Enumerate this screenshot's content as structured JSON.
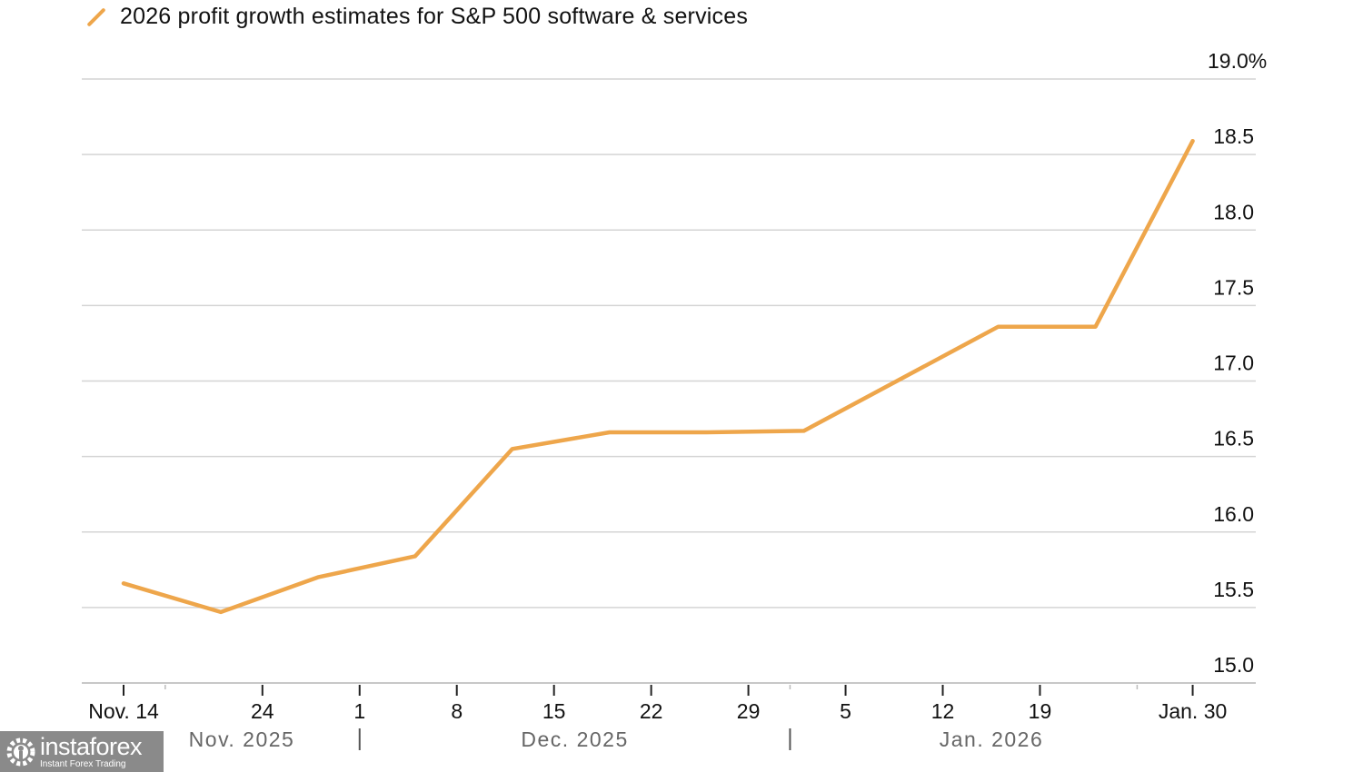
{
  "chart_data": {
    "type": "line",
    "title": "",
    "legend": [
      {
        "label": "2026 profit growth estimates for S&P 500 software & services",
        "color": "#EEA64B"
      }
    ],
    "legend_position": "top-left",
    "xlabel": "",
    "ylabel": "",
    "y_axis_side": "right",
    "ylim": [
      15.0,
      19.0
    ],
    "y_ticks": [
      {
        "value": 19.0,
        "label": "19.0%"
      },
      {
        "value": 18.5,
        "label": "18.5"
      },
      {
        "value": 18.0,
        "label": "18.0"
      },
      {
        "value": 17.5,
        "label": "17.5"
      },
      {
        "value": 17.0,
        "label": "17.0"
      },
      {
        "value": 16.5,
        "label": "16.5"
      },
      {
        "value": 16.0,
        "label": "16.0"
      },
      {
        "value": 15.5,
        "label": "15.5"
      },
      {
        "value": 15.0,
        "label": "15.0"
      }
    ],
    "grid": true,
    "x_range_days": [
      0,
      77
    ],
    "x_tick_note": "day offsets from Nov. 14, 2025",
    "x_ticks": [
      {
        "day": 0,
        "label": "Nov. 14"
      },
      {
        "day": 10,
        "label": "24"
      },
      {
        "day": 17,
        "label": "1"
      },
      {
        "day": 24,
        "label": "8"
      },
      {
        "day": 31,
        "label": "15"
      },
      {
        "day": 38,
        "label": "22"
      },
      {
        "day": 45,
        "label": "29"
      },
      {
        "day": 52,
        "label": "5"
      },
      {
        "day": 59,
        "label": "12"
      },
      {
        "day": 66,
        "label": "19"
      },
      {
        "day": 77,
        "label": "Jan. 30"
      }
    ],
    "minor_ticks_days": [
      3,
      48,
      73
    ],
    "month_labels": [
      {
        "label": "Nov. 2025",
        "start_day": 0,
        "end_day": 17
      },
      {
        "label": "Dec. 2025",
        "start_day": 17,
        "end_day": 48
      },
      {
        "label": "Jan. 2026",
        "start_day": 48,
        "end_day": 77
      }
    ],
    "month_separators_days": [
      17,
      48
    ],
    "series": [
      {
        "name": "2026 profit growth estimates for S&P 500 software & services",
        "color": "#EEA64B",
        "points": [
          {
            "date": "2025-11-14",
            "day": 0,
            "value": 15.66
          },
          {
            "date": "2025-11-21",
            "day": 7,
            "value": 15.47
          },
          {
            "date": "2025-11-28",
            "day": 14,
            "value": 15.7
          },
          {
            "date": "2025-12-05",
            "day": 21,
            "value": 15.84
          },
          {
            "date": "2025-12-12",
            "day": 28,
            "value": 16.55
          },
          {
            "date": "2025-12-19",
            "day": 35,
            "value": 16.66
          },
          {
            "date": "2025-12-26",
            "day": 42,
            "value": 16.66
          },
          {
            "date": "2026-01-02",
            "day": 49,
            "value": 16.67
          },
          {
            "date": "2026-01-16",
            "day": 63,
            "value": 17.36
          },
          {
            "date": "2026-01-23",
            "day": 70,
            "value": 17.36
          },
          {
            "date": "2026-01-30",
            "day": 77,
            "value": 18.59
          }
        ]
      }
    ]
  },
  "watermark": {
    "name": "instaforex",
    "tagline": "Instant Forex Trading"
  }
}
